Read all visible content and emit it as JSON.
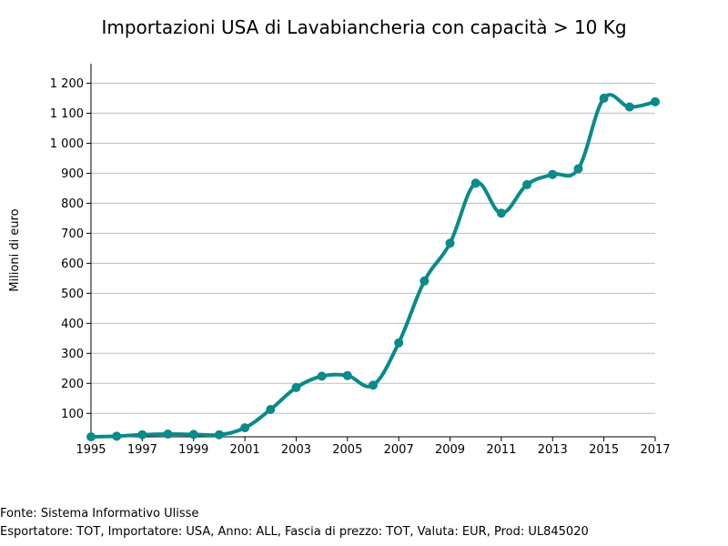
{
  "chart_data": {
    "type": "line",
    "title": "Importazioni USA di Lavabiancheria con capacità > 10 Kg",
    "ylabel": "Milioni di euro",
    "xlabel": "",
    "x": [
      1995,
      1996,
      1997,
      1998,
      1999,
      2000,
      2001,
      2002,
      2003,
      2004,
      2005,
      2006,
      2007,
      2008,
      2009,
      2010,
      2011,
      2012,
      2013,
      2014,
      2015,
      2016,
      2017
    ],
    "series": [
      {
        "values": [
          22,
          24,
          29,
          31,
          30,
          29,
          52,
          113,
          186,
          224,
          226,
          194,
          335,
          541,
          667,
          867,
          767,
          862,
          896,
          915,
          1150,
          1121,
          1138
        ],
        "color": "#0a8a8a"
      }
    ],
    "xlim": [
      1995,
      2017
    ],
    "ylim": [
      22,
      1265
    ],
    "x_ticks": [
      "1995",
      "1997",
      "1999",
      "2001",
      "2003",
      "2005",
      "2007",
      "2009",
      "2011",
      "2013",
      "2015",
      "2017"
    ],
    "y_ticks": [
      "100",
      "200",
      "300",
      "400",
      "500",
      "600",
      "700",
      "800",
      "900",
      "1 000",
      "1 100",
      "1 200"
    ],
    "grid": "horizontal",
    "legend": "none"
  },
  "footer": {
    "source": "Fonte: Sistema Informativo Ulisse",
    "filters": "Esportatore: TOT, Importatore: USA, Anno: ALL, Fascia di prezzo: TOT, Valuta: EUR, Prod: UL845020"
  }
}
